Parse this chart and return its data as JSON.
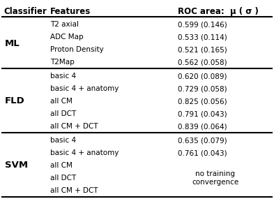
{
  "col_headers": [
    "Classifier",
    "Features",
    "ROC area:  μ ( σ )"
  ],
  "sections": [
    {
      "classifier": "ML",
      "rows": [
        [
          "T2 axial",
          "0.599 (0.146)"
        ],
        [
          "ADC Map",
          "0.533 (0.114)"
        ],
        [
          "Proton Density",
          "0.521 (0.165)"
        ],
        [
          "T2Map",
          "0.562 (0.058)"
        ]
      ],
      "special_note": null,
      "note_rows": []
    },
    {
      "classifier": "FLD",
      "rows": [
        [
          "basic 4",
          "0.620 (0.089)"
        ],
        [
          "basic 4 + anatomy",
          "0.729 (0.058)"
        ],
        [
          "all CM",
          "0.825 (0.056)"
        ],
        [
          "all DCT",
          "0.791 (0.043)"
        ],
        [
          "all CM + DCT",
          "0.839 (0.064)"
        ]
      ],
      "special_note": null,
      "note_rows": []
    },
    {
      "classifier": "SVM",
      "rows": [
        [
          "basic 4",
          "0.635 (0.079)"
        ],
        [
          "basic 4 + anatomy",
          "0.761 (0.043)"
        ],
        [
          "all CM",
          ""
        ],
        [
          "all DCT",
          ""
        ],
        [
          "all CM + DCT",
          ""
        ]
      ],
      "special_note": "no training\nconvergence",
      "note_rows": [
        2,
        3,
        4
      ]
    }
  ],
  "bg_color": "#ffffff",
  "text_color": "#000000",
  "line_color": "#000000",
  "font_size": 7.5,
  "header_font_size": 8.5,
  "classifier_font_size": 9.5
}
